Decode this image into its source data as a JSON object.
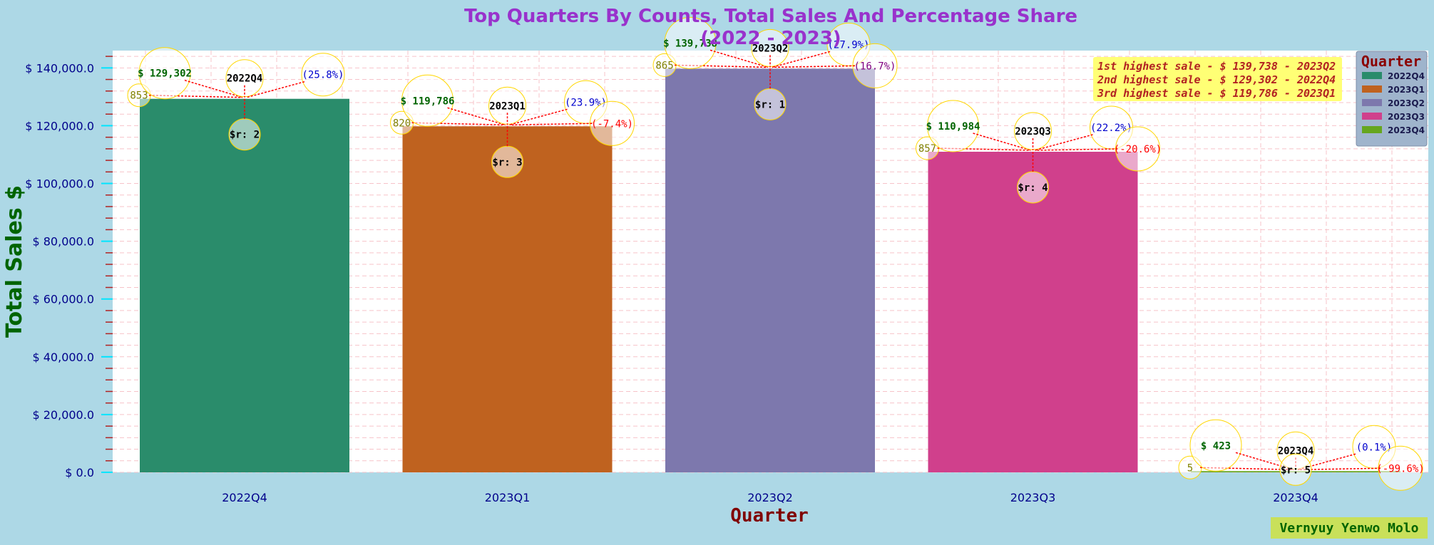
{
  "chart_data": {
    "type": "bar",
    "title_line1": "Top Quarters By Counts, Total Sales And Percentage Share",
    "title_line2": "(2022 - 2023)",
    "xlabel": "Quarter",
    "ylabel": "Total Sales $",
    "ylim": [
      0,
      146000
    ],
    "yticks": [
      0,
      20000,
      40000,
      60000,
      80000,
      100000,
      120000,
      140000
    ],
    "ytick_labels": [
      "$ 0.0",
      "$ 20,000.0",
      "$ 40,000.0",
      "$ 60,000.0",
      "$ 80,000.0",
      "$ 100,000.0",
      "$ 120,000.0",
      "$ 140,000.0"
    ],
    "grid": true,
    "legend_position": "top-right",
    "categories": [
      "2022Q4",
      "2023Q1",
      "2023Q2",
      "2023Q3",
      "2023Q4"
    ],
    "values": [
      129302,
      119786,
      139738,
      110984,
      423
    ],
    "colors": [
      "#2a8c6b",
      "#bf621f",
      "#7d78ad",
      "#d0408c",
      "#66a61e"
    ],
    "annotations": [
      {
        "sales_label": "$ 129,302",
        "count_label": "853",
        "quarter_label": "2022Q4",
        "share_label": "(25.8%)",
        "change_label": "",
        "rank_label": "$r: 2"
      },
      {
        "sales_label": "$ 119,786",
        "count_label": "820",
        "quarter_label": "2023Q1",
        "share_label": "(23.9%)",
        "change_label": "(-7.4%)",
        "rank_label": "$r: 3"
      },
      {
        "sales_label": "$ 139,738",
        "count_label": "865",
        "quarter_label": "2023Q2",
        "share_label": "(27.9%)",
        "change_label": "(16.7%)",
        "rank_label": "$r: 1"
      },
      {
        "sales_label": "$ 110,984",
        "count_label": "857",
        "quarter_label": "2023Q3",
        "share_label": "(22.2%)",
        "change_label": "(-20.6%)",
        "rank_label": "$r: 4"
      },
      {
        "sales_label": "$ 423",
        "count_label": "5",
        "quarter_label": "2023Q4",
        "share_label": "(0.1%)",
        "change_label": "(-99.6%)",
        "rank_label": "$r: 5"
      }
    ],
    "highlights": [
      "1st highest sale - $ 139,738 - 2023Q2",
      "2nd highest sale - $ 129,302 - 2022Q4",
      "3rd highest sale - $ 119,786 - 2023Q1"
    ],
    "legend": {
      "title": "Quarter",
      "entries": [
        "2022Q4",
        "2023Q1",
        "2023Q2",
        "2023Q3",
        "2023Q4"
      ]
    },
    "watermark": "Vernyuy Yenwo Molo"
  }
}
